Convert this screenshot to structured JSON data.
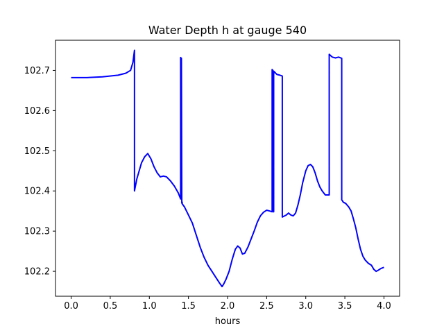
{
  "chart_data": {
    "type": "line",
    "title": "Water Depth h at gauge 540",
    "xlabel": "hours",
    "ylabel": "",
    "xlim": [
      -0.2,
      4.2
    ],
    "ylim": [
      102.138,
      102.775
    ],
    "x_ticks": [
      0.0,
      0.5,
      1.0,
      1.5,
      2.0,
      2.5,
      3.0,
      3.5,
      4.0
    ],
    "x_tick_labels": [
      "0.0",
      "0.5",
      "1.0",
      "1.5",
      "2.0",
      "2.5",
      "3.0",
      "3.5",
      "4.0"
    ],
    "y_ticks": [
      102.2,
      102.3,
      102.4,
      102.5,
      102.6,
      102.7
    ],
    "y_tick_labels": [
      "102.2",
      "102.3",
      "102.4",
      "102.5",
      "102.6",
      "102.7"
    ],
    "grid": false,
    "line_color": "#0000ff",
    "series": [
      {
        "x": [
          0.0,
          0.2,
          0.4,
          0.6,
          0.7,
          0.76,
          0.79,
          0.81,
          0.81,
          0.84,
          0.87,
          0.9,
          0.94,
          0.98,
          1.02,
          1.06,
          1.1,
          1.14,
          1.18,
          1.22,
          1.27,
          1.32,
          1.37,
          1.4,
          1.4,
          1.41,
          1.415,
          1.42,
          1.42,
          1.45,
          1.5,
          1.55,
          1.6,
          1.65,
          1.7,
          1.75,
          1.8,
          1.85,
          1.9,
          1.93,
          1.95,
          1.98,
          2.02,
          2.06,
          2.1,
          2.13,
          2.16,
          2.19,
          2.22,
          2.26,
          2.3,
          2.34,
          2.38,
          2.42,
          2.46,
          2.5,
          2.54,
          2.57,
          2.57,
          2.58,
          2.585,
          2.59,
          2.59,
          2.63,
          2.67,
          2.7,
          2.7,
          2.75,
          2.78,
          2.81,
          2.84,
          2.87,
          2.9,
          2.93,
          2.96,
          3.0,
          3.03,
          3.06,
          3.09,
          3.12,
          3.15,
          3.18,
          3.21,
          3.25,
          3.3,
          3.3,
          3.34,
          3.38,
          3.42,
          3.46,
          3.46,
          3.48,
          3.51,
          3.55,
          3.58,
          3.61,
          3.64,
          3.67,
          3.7,
          3.73,
          3.76,
          3.8,
          3.84,
          3.87,
          3.9,
          3.93,
          3.96,
          4.0
        ],
        "y": [
          102.682,
          102.682,
          102.684,
          102.688,
          102.693,
          102.7,
          102.72,
          102.75,
          102.4,
          102.43,
          102.45,
          102.47,
          102.485,
          102.493,
          102.48,
          102.46,
          102.445,
          102.435,
          102.437,
          102.435,
          102.425,
          102.412,
          102.395,
          102.38,
          102.732,
          102.73,
          102.37,
          102.372,
          102.368,
          102.36,
          102.34,
          102.32,
          102.29,
          102.26,
          102.235,
          102.215,
          102.2,
          102.185,
          102.17,
          102.162,
          102.168,
          102.18,
          102.2,
          102.23,
          102.255,
          102.263,
          102.258,
          102.243,
          102.245,
          102.26,
          102.28,
          102.3,
          102.322,
          102.338,
          102.347,
          102.352,
          102.35,
          102.348,
          102.702,
          102.7,
          102.35,
          102.348,
          102.698,
          102.69,
          102.688,
          102.686,
          102.335,
          102.34,
          102.345,
          102.34,
          102.338,
          102.345,
          102.365,
          102.39,
          102.42,
          102.45,
          102.463,
          102.466,
          102.46,
          102.445,
          102.425,
          102.41,
          102.4,
          102.39,
          102.39,
          102.74,
          102.733,
          102.731,
          102.733,
          102.73,
          102.378,
          102.372,
          102.369,
          102.36,
          102.35,
          102.33,
          102.308,
          102.28,
          102.255,
          102.238,
          102.228,
          102.22,
          102.215,
          102.205,
          102.2,
          102.203,
          102.207,
          102.21
        ]
      }
    ]
  }
}
